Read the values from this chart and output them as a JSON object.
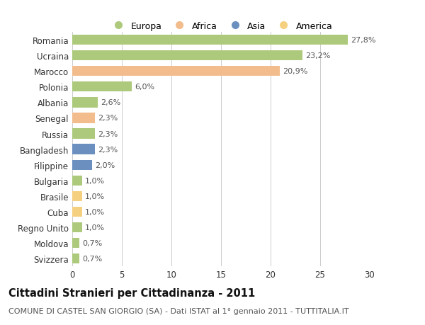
{
  "countries": [
    "Romania",
    "Ucraina",
    "Marocco",
    "Polonia",
    "Albania",
    "Senegal",
    "Russia",
    "Bangladesh",
    "Filippine",
    "Bulgaria",
    "Brasile",
    "Cuba",
    "Regno Unito",
    "Moldova",
    "Svizzera"
  ],
  "values": [
    27.8,
    23.2,
    20.9,
    6.0,
    2.6,
    2.3,
    2.3,
    2.3,
    2.0,
    1.0,
    1.0,
    1.0,
    1.0,
    0.7,
    0.7
  ],
  "labels": [
    "27,8%",
    "23,2%",
    "20,9%",
    "6,0%",
    "2,6%",
    "2,3%",
    "2,3%",
    "2,3%",
    "2,0%",
    "1,0%",
    "1,0%",
    "1,0%",
    "1,0%",
    "0,7%",
    "0,7%"
  ],
  "continents": [
    "Europa",
    "Europa",
    "Africa",
    "Europa",
    "Europa",
    "Africa",
    "Europa",
    "Asia",
    "Asia",
    "Europa",
    "America",
    "America",
    "Europa",
    "Europa",
    "Europa"
  ],
  "colors": {
    "Europa": "#adc97c",
    "Africa": "#f2bc8d",
    "Asia": "#6b8fbe",
    "America": "#f5d080"
  },
  "xlim": [
    0,
    30
  ],
  "xticks": [
    0,
    5,
    10,
    15,
    20,
    25,
    30
  ],
  "title": "Cittadini Stranieri per Cittadinanza - 2011",
  "subtitle": "COMUNE DI CASTEL SAN GIORGIO (SA) - Dati ISTAT al 1° gennaio 2011 - TUTTITALIA.IT",
  "background_color": "#ffffff",
  "grid_color": "#cccccc",
  "bar_height": 0.65,
  "label_fontsize": 8,
  "tick_fontsize": 8.5,
  "title_fontsize": 10.5,
  "subtitle_fontsize": 8,
  "legend_order": [
    "Europa",
    "Africa",
    "Asia",
    "America"
  ]
}
